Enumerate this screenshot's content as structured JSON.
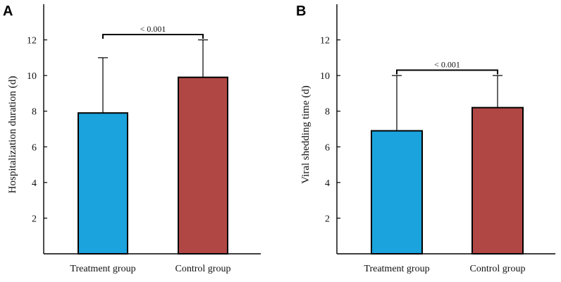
{
  "chart_data": [
    {
      "type": "bar",
      "panel": "A",
      "categories": [
        "Treatment group",
        "Control group"
      ],
      "values": [
        7.9,
        9.9
      ],
      "error_upper": [
        11,
        12
      ],
      "colors": [
        "#1aa3dc",
        "#b14744"
      ],
      "ylabel": "Hospitalization duration (d)",
      "ylim": [
        0,
        14
      ],
      "yticks": [
        2,
        4,
        6,
        8,
        10,
        12
      ],
      "significance": {
        "label": "< 0.001",
        "level": 12.3,
        "from": 0,
        "to": 1
      }
    },
    {
      "type": "bar",
      "panel": "B",
      "categories": [
        "Treatment group",
        "Control group"
      ],
      "values": [
        6.9,
        8.2
      ],
      "error_upper": [
        10,
        10
      ],
      "colors": [
        "#1aa3dc",
        "#b14744"
      ],
      "ylabel": "Viral shedding time (d)",
      "ylim": [
        0,
        14
      ],
      "yticks": [
        2,
        4,
        6,
        8,
        10,
        12
      ],
      "significance": {
        "label": "< 0.001",
        "level": 10.3,
        "from": 0,
        "to": 1
      }
    }
  ]
}
